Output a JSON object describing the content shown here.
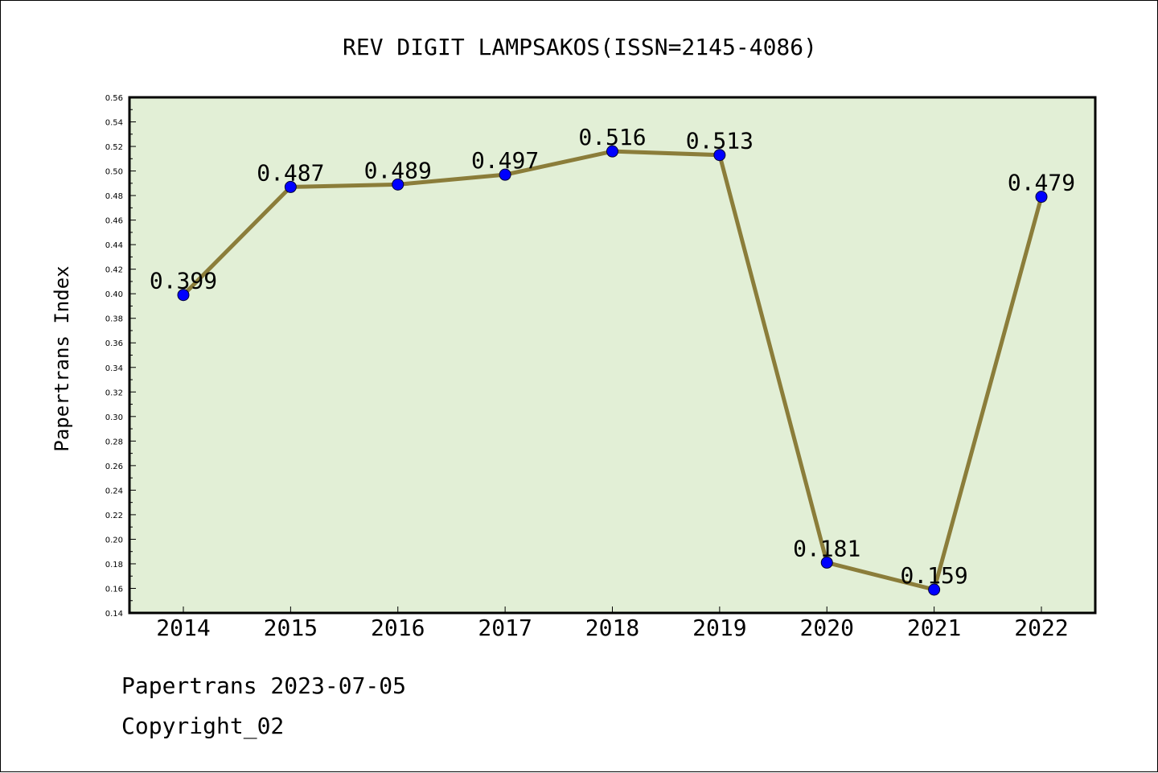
{
  "chart_data": {
    "type": "line",
    "title": "REV DIGIT LAMPSAKOS(ISSN=2145-4086)",
    "xlabel": "",
    "ylabel": "Papertrans Index",
    "categories": [
      "2014",
      "2015",
      "2016",
      "2017",
      "2018",
      "2019",
      "2020",
      "2021",
      "2022"
    ],
    "series": [
      {
        "values": [
          0.399,
          0.487,
          0.489,
          0.497,
          0.516,
          0.513,
          0.181,
          0.159,
          0.479
        ],
        "labels": [
          "0.399",
          "0.487",
          "0.489",
          "0.497",
          "0.516",
          "0.513",
          "0.181",
          "0.159",
          "0.479"
        ]
      }
    ],
    "ylim": [
      0.14,
      0.56
    ],
    "yticks": [
      "0.14",
      "0.16",
      "0.18",
      "0.20",
      "0.22",
      "0.24",
      "0.26",
      "0.28",
      "0.30",
      "0.32",
      "0.34",
      "0.36",
      "0.38",
      "0.40",
      "0.42",
      "0.44",
      "0.46",
      "0.48",
      "0.50",
      "0.52",
      "0.54",
      "0.56"
    ],
    "grid": false,
    "colors": {
      "plot_background": "#e2efd6",
      "line": "#8b7d3a",
      "marker": "#0000ff"
    }
  },
  "footer": {
    "source": "Papertrans 2023-07-05",
    "copyright": "Copyright_02"
  }
}
